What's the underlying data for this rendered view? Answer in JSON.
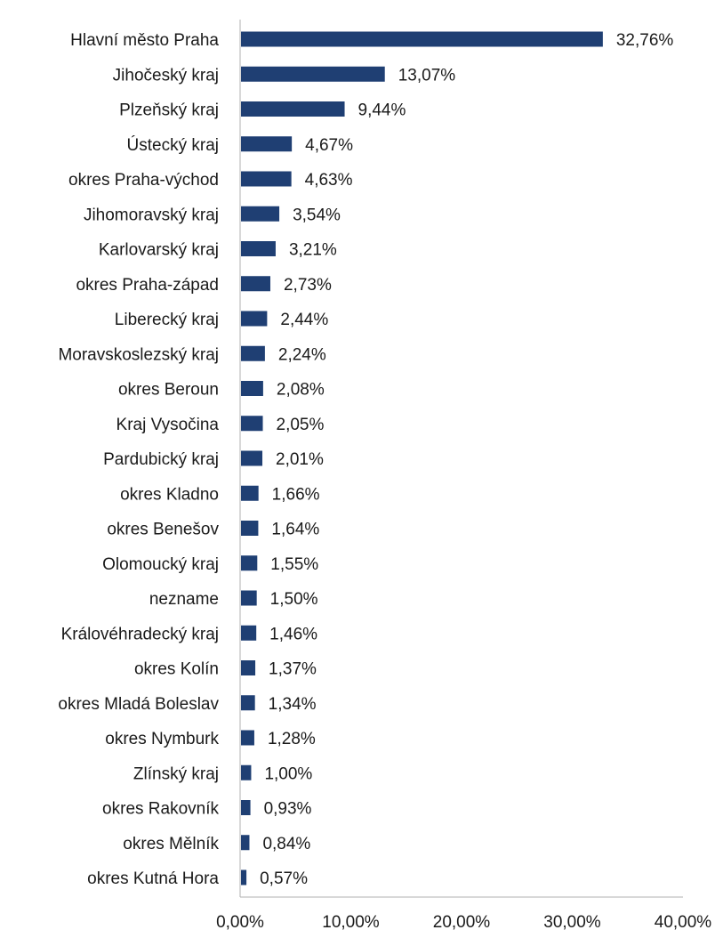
{
  "chart_data": {
    "type": "bar",
    "orientation": "horizontal",
    "categories": [
      "Hlavní město Praha",
      "Jihočeský kraj",
      "Plzeňský kraj",
      "Ústecký kraj",
      "okres Praha-východ",
      "Jihomoravský kraj",
      "Karlovarský kraj",
      "okres Praha-západ",
      "Liberecký kraj",
      "Moravskoslezský kraj",
      "okres Beroun",
      "Kraj Vysočina",
      "Pardubický kraj",
      "okres Kladno",
      "okres Benešov",
      "Olomoucký kraj",
      "nezname",
      "Královéhradecký kraj",
      "okres Kolín",
      "okres Mladá Boleslav",
      "okres Nymburk",
      "Zlínský kraj",
      "okres Rakovník",
      "okres Mělník",
      "okres Kutná Hora"
    ],
    "values": [
      32.76,
      13.07,
      9.44,
      4.67,
      4.63,
      3.54,
      3.21,
      2.73,
      2.44,
      2.24,
      2.08,
      2.05,
      2.01,
      1.66,
      1.64,
      1.55,
      1.5,
      1.46,
      1.37,
      1.34,
      1.28,
      1.0,
      0.93,
      0.84,
      0.57
    ],
    "value_labels": [
      "32,76%",
      "13,07%",
      "9,44%",
      "4,67%",
      "4,63%",
      "3,54%",
      "3,21%",
      "2,73%",
      "2,44%",
      "2,24%",
      "2,08%",
      "2,05%",
      "2,01%",
      "1,66%",
      "1,64%",
      "1,55%",
      "1,50%",
      "1,46%",
      "1,37%",
      "1,34%",
      "1,28%",
      "1,00%",
      "0,93%",
      "0,84%",
      "0,57%"
    ],
    "xlim": [
      0,
      40
    ],
    "x_ticks": [
      0,
      10,
      20,
      30,
      40
    ],
    "x_tick_labels": [
      "0,00%",
      "10,00%",
      "20,00%",
      "30,00%",
      "40,00%"
    ],
    "grid": false,
    "legend": "none",
    "bar_color": "#1f3f73",
    "axis_color": "#b0b0b0",
    "text_color": "#1a1a1a"
  }
}
